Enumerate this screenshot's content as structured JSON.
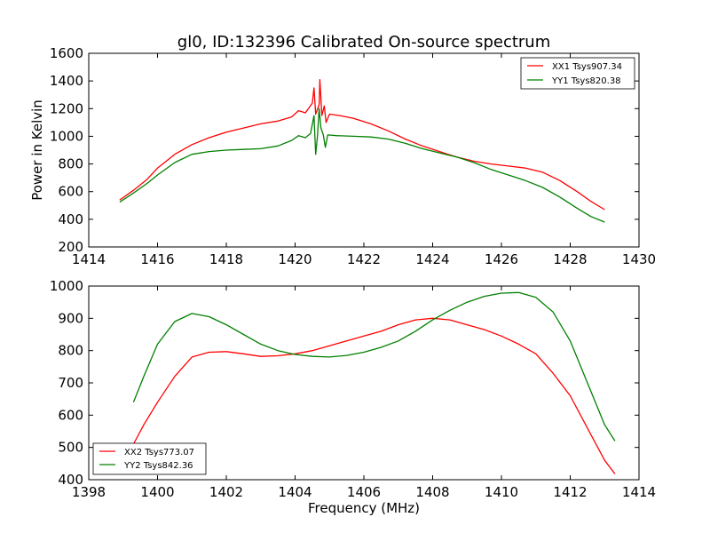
{
  "chart_data": [
    {
      "type": "line",
      "title": "gl0, ID:132396 Calibrated On-source spectrum",
      "xlabel": "",
      "ylabel": "Power in Kelvin",
      "xlim": [
        1414,
        1430
      ],
      "ylim": [
        200,
        1600
      ],
      "xticks": [
        "1414",
        "1416",
        "1418",
        "1420",
        "1422",
        "1424",
        "1426",
        "1428",
        "1430"
      ],
      "yticks": [
        "200",
        "400",
        "600",
        "800",
        "1000",
        "1200",
        "1400",
        "1600"
      ],
      "legend_position": "top-right",
      "grid": false,
      "series": [
        {
          "name": "XX1 Tsys907.34",
          "color": "#ff0000",
          "points": [
            [
              1414.9,
              540
            ],
            [
              1415.3,
              610
            ],
            [
              1415.7,
              690
            ],
            [
              1416.0,
              770
            ],
            [
              1416.5,
              870
            ],
            [
              1417.0,
              940
            ],
            [
              1417.5,
              990
            ],
            [
              1418.0,
              1030
            ],
            [
              1418.5,
              1060
            ],
            [
              1419.0,
              1090
            ],
            [
              1419.5,
              1110
            ],
            [
              1419.9,
              1140
            ],
            [
              1420.1,
              1185
            ],
            [
              1420.3,
              1170
            ],
            [
              1420.5,
              1240
            ],
            [
              1420.55,
              1350
            ],
            [
              1420.6,
              1160
            ],
            [
              1420.7,
              1230
            ],
            [
              1420.72,
              1410
            ],
            [
              1420.78,
              1150
            ],
            [
              1420.85,
              1220
            ],
            [
              1420.9,
              1100
            ],
            [
              1421.0,
              1160
            ],
            [
              1421.3,
              1150
            ],
            [
              1421.7,
              1130
            ],
            [
              1422.2,
              1090
            ],
            [
              1422.7,
              1040
            ],
            [
              1423.2,
              980
            ],
            [
              1423.7,
              930
            ],
            [
              1424.2,
              890
            ],
            [
              1424.7,
              850
            ],
            [
              1425.2,
              820
            ],
            [
              1425.7,
              800
            ],
            [
              1426.2,
              785
            ],
            [
              1426.7,
              770
            ],
            [
              1427.2,
              740
            ],
            [
              1427.7,
              680
            ],
            [
              1428.2,
              600
            ],
            [
              1428.6,
              530
            ],
            [
              1429.0,
              470
            ]
          ]
        },
        {
          "name": "YY1 Tsys820.38",
          "color": "#008000",
          "points": [
            [
              1414.9,
              525
            ],
            [
              1415.3,
              590
            ],
            [
              1415.7,
              660
            ],
            [
              1416.0,
              720
            ],
            [
              1416.5,
              810
            ],
            [
              1417.0,
              870
            ],
            [
              1417.5,
              890
            ],
            [
              1418.0,
              900
            ],
            [
              1418.5,
              905
            ],
            [
              1419.0,
              910
            ],
            [
              1419.5,
              930
            ],
            [
              1419.9,
              970
            ],
            [
              1420.1,
              1005
            ],
            [
              1420.3,
              990
            ],
            [
              1420.45,
              1020
            ],
            [
              1420.55,
              1150
            ],
            [
              1420.6,
              870
            ],
            [
              1420.65,
              1000
            ],
            [
              1420.7,
              1200
            ],
            [
              1420.75,
              1060
            ],
            [
              1420.82,
              1010
            ],
            [
              1420.88,
              920
            ],
            [
              1420.95,
              1010
            ],
            [
              1421.2,
              1005
            ],
            [
              1421.7,
              1000
            ],
            [
              1422.2,
              995
            ],
            [
              1422.7,
              980
            ],
            [
              1423.2,
              950
            ],
            [
              1423.7,
              910
            ],
            [
              1424.2,
              880
            ],
            [
              1424.7,
              850
            ],
            [
              1425.2,
              810
            ],
            [
              1425.7,
              760
            ],
            [
              1426.2,
              720
            ],
            [
              1426.7,
              680
            ],
            [
              1427.2,
              630
            ],
            [
              1427.7,
              560
            ],
            [
              1428.2,
              480
            ],
            [
              1428.6,
              420
            ],
            [
              1429.0,
              380
            ]
          ]
        }
      ]
    },
    {
      "type": "line",
      "title": "",
      "xlabel": "Frequency (MHz)",
      "ylabel": "",
      "xlim": [
        1398,
        1414
      ],
      "ylim": [
        400,
        1000
      ],
      "xticks": [
        "1398",
        "1400",
        "1402",
        "1404",
        "1406",
        "1408",
        "1410",
        "1412",
        "1414"
      ],
      "yticks": [
        "400",
        "500",
        "600",
        "700",
        "800",
        "900",
        "1000"
      ],
      "legend_position": "bottom-left",
      "grid": false,
      "series": [
        {
          "name": "XX2 Tsys773.07",
          "color": "#ff0000",
          "points": [
            [
              1399.3,
              510
            ],
            [
              1399.6,
              570
            ],
            [
              1400.0,
              640
            ],
            [
              1400.5,
              720
            ],
            [
              1401.0,
              780
            ],
            [
              1401.5,
              795
            ],
            [
              1402.0,
              797
            ],
            [
              1402.5,
              790
            ],
            [
              1403.0,
              782
            ],
            [
              1403.5,
              784
            ],
            [
              1404.0,
              790
            ],
            [
              1404.5,
              800
            ],
            [
              1405.0,
              815
            ],
            [
              1405.5,
              830
            ],
            [
              1406.0,
              845
            ],
            [
              1406.5,
              860
            ],
            [
              1407.0,
              880
            ],
            [
              1407.5,
              895
            ],
            [
              1408.0,
              900
            ],
            [
              1408.5,
              895
            ],
            [
              1409.0,
              880
            ],
            [
              1409.5,
              865
            ],
            [
              1410.0,
              845
            ],
            [
              1410.5,
              820
            ],
            [
              1411.0,
              790
            ],
            [
              1411.5,
              730
            ],
            [
              1412.0,
              660
            ],
            [
              1412.5,
              560
            ],
            [
              1413.0,
              460
            ],
            [
              1413.3,
              418
            ]
          ]
        },
        {
          "name": "YY2 Tsys842.36",
          "color": "#008000",
          "points": [
            [
              1399.3,
              640
            ],
            [
              1399.6,
              720
            ],
            [
              1400.0,
              820
            ],
            [
              1400.5,
              890
            ],
            [
              1401.0,
              915
            ],
            [
              1401.5,
              905
            ],
            [
              1402.0,
              880
            ],
            [
              1402.5,
              850
            ],
            [
              1403.0,
              820
            ],
            [
              1403.5,
              800
            ],
            [
              1404.0,
              788
            ],
            [
              1404.5,
              782
            ],
            [
              1405.0,
              780
            ],
            [
              1405.5,
              785
            ],
            [
              1406.0,
              795
            ],
            [
              1406.5,
              810
            ],
            [
              1407.0,
              830
            ],
            [
              1407.5,
              860
            ],
            [
              1408.0,
              895
            ],
            [
              1408.5,
              925
            ],
            [
              1409.0,
              950
            ],
            [
              1409.5,
              968
            ],
            [
              1410.0,
              978
            ],
            [
              1410.5,
              980
            ],
            [
              1411.0,
              965
            ],
            [
              1411.5,
              920
            ],
            [
              1412.0,
              830
            ],
            [
              1412.5,
              700
            ],
            [
              1413.0,
              570
            ],
            [
              1413.3,
              520
            ]
          ]
        }
      ]
    }
  ]
}
